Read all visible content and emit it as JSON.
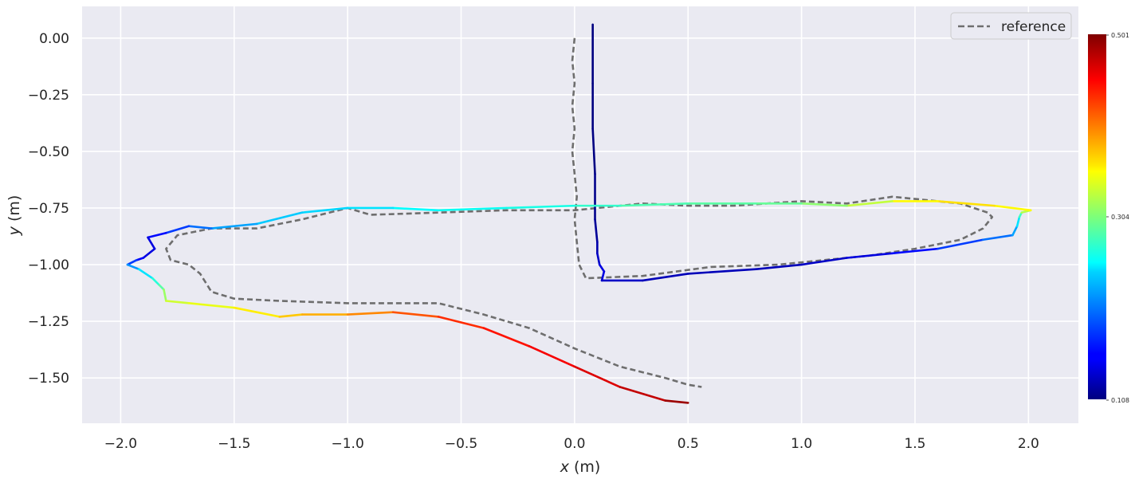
{
  "chart_data": {
    "type": "line",
    "xlabel": "x (m)",
    "ylabel": "y (m)",
    "xlim": [
      -2.17,
      2.22
    ],
    "ylim": [
      -1.7,
      0.14
    ],
    "x_ticks": [
      -2.0,
      -1.5,
      -1.0,
      -0.5,
      0.0,
      0.5,
      1.0,
      1.5,
      2.0
    ],
    "x_tick_labels": [
      "−2.0",
      "−1.5",
      "−1.0",
      "−0.5",
      "0.0",
      "0.5",
      "1.0",
      "1.5",
      "2.0"
    ],
    "y_ticks": [
      0.0,
      -0.25,
      -0.5,
      -0.75,
      -1.0,
      -1.25,
      -1.5
    ],
    "y_tick_labels": [
      "0.00",
      "−0.25",
      "−0.50",
      "−0.75",
      "−1.00",
      "−1.25",
      "−1.50"
    ],
    "grid": true,
    "legend": {
      "position": "top-right",
      "entries": [
        "reference"
      ]
    },
    "colorbar": {
      "colormap": "jet",
      "min": 0.108,
      "max": 0.501,
      "tick_labels": [
        "0.501",
        "0.304",
        "0.108"
      ]
    },
    "series": [
      {
        "name": "reference",
        "style": "dashed",
        "color": "#6e6e6e",
        "x": [
          0.0,
          -0.01,
          0.0,
          -0.01,
          0.0,
          -0.01,
          0.0,
          0.01,
          0.0,
          0.01,
          0.02,
          0.05,
          0.3,
          0.6,
          0.9,
          1.1,
          1.3,
          1.5,
          1.7,
          1.8,
          1.84,
          1.82,
          1.7,
          1.5,
          1.4,
          1.2,
          1.0,
          0.7,
          0.5,
          0.3,
          0.0,
          -0.3,
          -0.6,
          -0.9,
          -1.0,
          -1.2,
          -1.4,
          -1.6,
          -1.75,
          -1.8,
          -1.78,
          -1.7,
          -1.65,
          -1.6,
          -1.5,
          -1.3,
          -1.0,
          -0.8,
          -0.6,
          -0.4,
          -0.2,
          0.0,
          0.2,
          0.4,
          0.5,
          0.56
        ],
        "y": [
          0.0,
          -0.1,
          -0.2,
          -0.3,
          -0.4,
          -0.5,
          -0.6,
          -0.7,
          -0.8,
          -0.9,
          -1.0,
          -1.06,
          -1.05,
          -1.01,
          -1.0,
          -0.98,
          -0.96,
          -0.93,
          -0.89,
          -0.84,
          -0.79,
          -0.77,
          -0.73,
          -0.71,
          -0.7,
          -0.73,
          -0.72,
          -0.74,
          -0.74,
          -0.73,
          -0.76,
          -0.76,
          -0.77,
          -0.78,
          -0.75,
          -0.8,
          -0.84,
          -0.84,
          -0.87,
          -0.93,
          -0.98,
          -1.0,
          -1.04,
          -1.12,
          -1.15,
          -1.16,
          -1.17,
          -1.17,
          -1.17,
          -1.22,
          -1.28,
          -1.37,
          -1.45,
          -1.5,
          -1.53,
          -1.54
        ]
      },
      {
        "name": "",
        "style": "colormapped",
        "x": [
          0.08,
          0.08,
          0.08,
          0.09,
          0.09,
          0.1,
          0.1,
          0.11,
          0.13,
          0.12,
          0.3,
          0.5,
          0.8,
          1.0,
          1.2,
          1.4,
          1.6,
          1.8,
          1.93,
          1.95,
          1.96,
          1.97,
          2.01,
          1.85,
          1.6,
          1.4,
          1.2,
          1.0,
          0.8,
          0.5,
          0.2,
          0.0,
          -0.3,
          -0.6,
          -0.8,
          -1.0,
          -1.2,
          -1.4,
          -1.6,
          -1.7,
          -1.8,
          -1.88,
          -1.85,
          -1.9,
          -1.93,
          -1.97,
          -1.92,
          -1.86,
          -1.83,
          -1.81,
          -1.8,
          -1.7,
          -1.5,
          -1.3,
          -1.2,
          -1.0,
          -0.8,
          -0.6,
          -0.4,
          -0.2,
          0.0,
          0.2,
          0.4,
          0.5
        ],
        "y": [
          0.06,
          -0.2,
          -0.4,
          -0.6,
          -0.8,
          -0.9,
          -0.95,
          -1.0,
          -1.03,
          -1.07,
          -1.07,
          -1.04,
          -1.02,
          -1.0,
          -0.97,
          -0.95,
          -0.93,
          -0.89,
          -0.87,
          -0.83,
          -0.79,
          -0.77,
          -0.76,
          -0.74,
          -0.72,
          -0.72,
          -0.74,
          -0.73,
          -0.73,
          -0.73,
          -0.74,
          -0.74,
          -0.75,
          -0.76,
          -0.75,
          -0.75,
          -0.77,
          -0.82,
          -0.84,
          -0.83,
          -0.86,
          -0.88,
          -0.93,
          -0.97,
          -0.98,
          -1.0,
          -1.02,
          -1.06,
          -1.09,
          -1.11,
          -1.16,
          -1.17,
          -1.19,
          -1.23,
          -1.22,
          -1.22,
          -1.21,
          -1.23,
          -1.28,
          -1.36,
          -1.45,
          -1.54,
          -1.6,
          -1.61
        ],
        "speed": [
          0.108,
          0.108,
          0.108,
          0.11,
          0.115,
          0.12,
          0.13,
          0.14,
          0.15,
          0.14,
          0.13,
          0.13,
          0.13,
          0.13,
          0.14,
          0.15,
          0.17,
          0.19,
          0.21,
          0.23,
          0.26,
          0.3,
          0.35,
          0.36,
          0.37,
          0.34,
          0.32,
          0.3,
          0.29,
          0.29,
          0.28,
          0.27,
          0.26,
          0.26,
          0.25,
          0.24,
          0.24,
          0.23,
          0.21,
          0.19,
          0.17,
          0.15,
          0.14,
          0.15,
          0.16,
          0.2,
          0.23,
          0.26,
          0.28,
          0.3,
          0.33,
          0.34,
          0.35,
          0.37,
          0.38,
          0.39,
          0.41,
          0.43,
          0.44,
          0.45,
          0.46,
          0.47,
          0.48,
          0.5
        ]
      }
    ]
  }
}
